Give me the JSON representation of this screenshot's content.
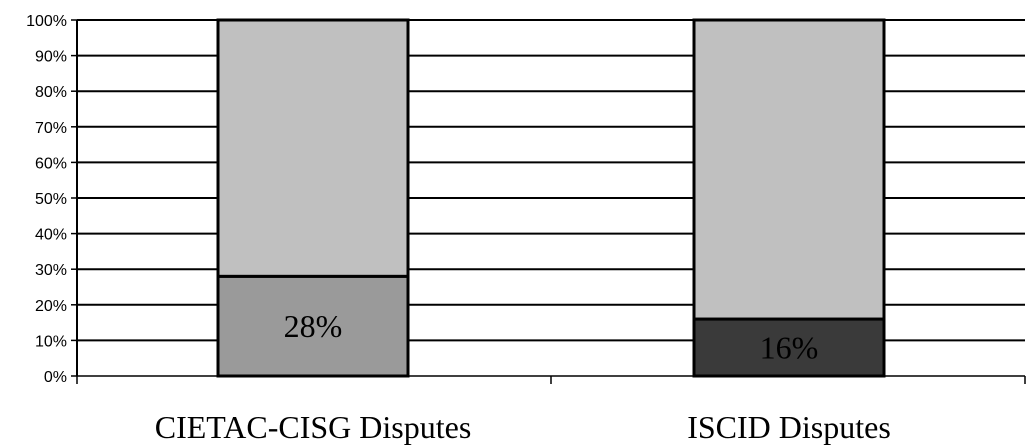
{
  "chart_data": {
    "type": "bar",
    "stacked": true,
    "categories": [
      "CIETAC-CISG Disputes",
      "ISCID Disputes"
    ],
    "series": [
      {
        "values": [
          28,
          16
        ],
        "color": "#9a9a9a",
        "labels": [
          "28%",
          "16%"
        ]
      },
      {
        "values": [
          72,
          84
        ],
        "color": "#c0c0c0"
      }
    ],
    "bottom_colors": [
      "#9a9a9a",
      "#3a3a3a"
    ],
    "top_color": "#c0c0c0",
    "ylim": [
      0,
      100
    ],
    "yticks": [
      0,
      10,
      20,
      30,
      40,
      50,
      60,
      70,
      80,
      90,
      100
    ],
    "ytick_labels": [
      "0%",
      "10%",
      "20%",
      "30%",
      "40%",
      "50%",
      "60%",
      "70%",
      "80%",
      "90%",
      "100%"
    ],
    "grid": true,
    "title": "",
    "xlabel": "",
    "ylabel": ""
  }
}
